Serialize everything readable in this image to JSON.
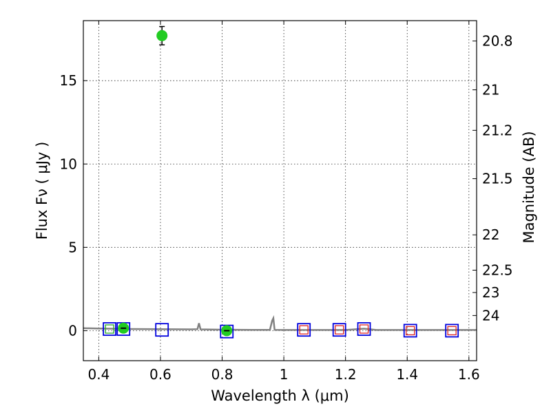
{
  "chart_data": {
    "type": "scatter",
    "xlabel": "Wavelength  λ (μm)",
    "ylabel": "Flux  Fν  ( μJy )",
    "y2label": "Magnitude (AB)",
    "xlim": [
      0.35,
      1.625
    ],
    "ylim": [
      -1.8,
      18.6
    ],
    "grid": true,
    "x_ticks": [
      0.4,
      0.6,
      0.8,
      1.0,
      1.2,
      1.4,
      1.6
    ],
    "x_tick_labels": [
      "0.4",
      "0.6",
      "0.8",
      "1",
      "1.2",
      "1.4",
      "1.6"
    ],
    "y_ticks": [
      0,
      5,
      10,
      15
    ],
    "y_tick_labels": [
      "0",
      "5",
      "10",
      "15"
    ],
    "y2_ticks": [
      {
        "mag": "20.8",
        "flux": 17.38
      },
      {
        "mag": "21",
        "flux": 14.45
      },
      {
        "mag": "21.2",
        "flux": 12.02
      },
      {
        "mag": "21.5",
        "flux": 9.12
      },
      {
        "mag": "22",
        "flux": 5.75
      },
      {
        "mag": "22.5",
        "flux": 3.63
      },
      {
        "mag": "23",
        "flux": 2.29
      },
      {
        "mag": "24",
        "flux": 0.91
      }
    ],
    "colors": {
      "observed": "#22cc22",
      "model_blue": "#0000dd",
      "model_red": "#dd2222",
      "model_green": "#22aa22",
      "spectrum": "#808080"
    },
    "series": [
      {
        "kind": "observed",
        "points": [
          {
            "x": 0.48,
            "y": 0.15,
            "err": 0.15
          },
          {
            "x": 0.605,
            "y": 17.7,
            "err": 0.55
          },
          {
            "x": 0.815,
            "y": 0.0,
            "err": 0.15
          }
        ]
      },
      {
        "kind": "model_squares",
        "points": [
          {
            "x": 0.435,
            "y": 0.1,
            "inner": "model_green"
          },
          {
            "x": 0.48,
            "y": 0.1,
            "inner": null
          },
          {
            "x": 0.605,
            "y": 0.05,
            "inner": null
          },
          {
            "x": 0.815,
            "y": -0.05,
            "inner": null
          },
          {
            "x": 1.065,
            "y": 0.05,
            "inner": "model_red"
          },
          {
            "x": 1.18,
            "y": 0.05,
            "inner": "model_red"
          },
          {
            "x": 1.26,
            "y": 0.1,
            "inner": "model_red"
          },
          {
            "x": 1.41,
            "y": 0.0,
            "inner": "model_red"
          },
          {
            "x": 1.545,
            "y": 0.0,
            "inner": "model_red"
          }
        ]
      },
      {
        "kind": "spectrum",
        "x": [
          0.35,
          0.4,
          0.5,
          0.6,
          0.7,
          0.72,
          0.725,
          0.73,
          0.8,
          0.9,
          0.955,
          0.962,
          0.966,
          0.97,
          1.0,
          1.1,
          1.2,
          1.26,
          1.3,
          1.4,
          1.5,
          1.625
        ],
        "y": [
          0.15,
          0.13,
          0.1,
          0.09,
          0.08,
          0.09,
          0.45,
          0.08,
          0.06,
          0.05,
          0.05,
          0.6,
          0.75,
          0.05,
          0.04,
          0.04,
          0.04,
          0.12,
          0.04,
          0.04,
          0.04,
          0.04
        ]
      }
    ]
  }
}
